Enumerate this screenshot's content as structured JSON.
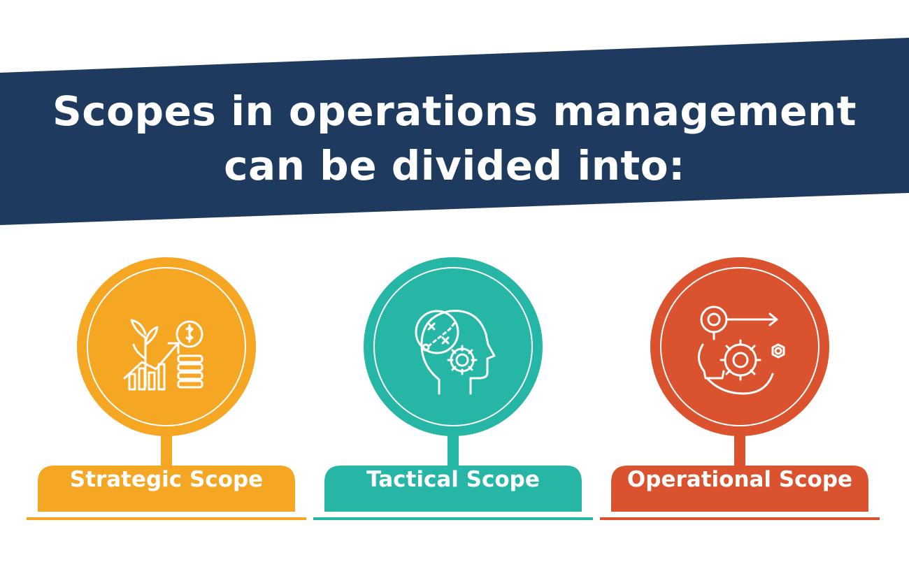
{
  "heading": {
    "line1": "Scopes in operations management",
    "line2": "can be divided into:"
  },
  "colors": {
    "banner": "#1f3a5f",
    "strategic": "#f5a623",
    "tactical": "#26b6a5",
    "operational": "#db532e"
  },
  "scopes": [
    {
      "label": "Strategic Scope",
      "icon": "growth-plant-coins-icon"
    },
    {
      "label": "Tactical Scope",
      "icon": "head-strategy-gear-icon"
    },
    {
      "label": "Operational Scope",
      "icon": "bulb-gear-target-icon"
    }
  ]
}
